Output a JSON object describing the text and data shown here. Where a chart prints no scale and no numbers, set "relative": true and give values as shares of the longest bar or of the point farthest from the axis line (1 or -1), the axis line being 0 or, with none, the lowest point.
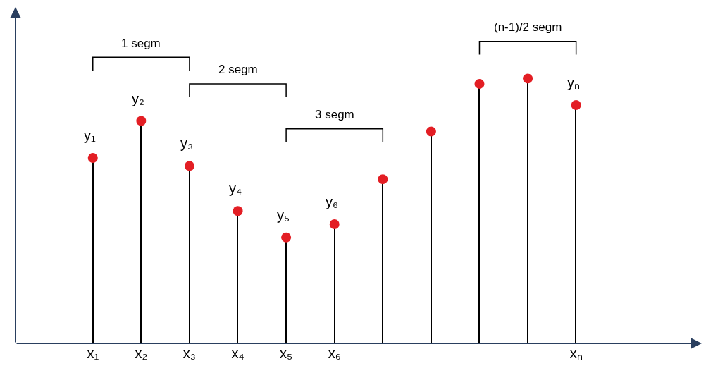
{
  "chart_data": {
    "type": "lollipop",
    "relative": true,
    "categories": [
      "x₁",
      "x₂",
      "x₃",
      "x₄",
      "x₅",
      "x₆",
      null,
      null,
      null,
      null,
      "xₙ"
    ],
    "values": [
      0.7,
      0.84,
      0.67,
      0.5,
      0.4,
      0.45,
      0.62,
      0.8,
      0.98,
      1.0,
      0.9
    ],
    "color": "#e31e24",
    "marker": "circle",
    "annotations": [
      {
        "text": "y₁",
        "x": "x₁",
        "y": 0.7
      },
      {
        "text": "y₂",
        "x": "x₂",
        "y": 0.84
      },
      {
        "text": "y₃",
        "x": "x₃",
        "y": 0.67
      },
      {
        "text": "y₄",
        "x": "x₄",
        "y": 0.5
      },
      {
        "text": "y₅",
        "x": "x₅",
        "y": 0.4
      },
      {
        "text": "y₆",
        "x": "x₆",
        "y": 0.45
      },
      {
        "text": "yₙ",
        "x": "xₙ",
        "y": 0.9
      },
      "1 segm",
      "2 segm",
      "3 segm",
      "(n-1)/2 segm"
    ]
  }
}
